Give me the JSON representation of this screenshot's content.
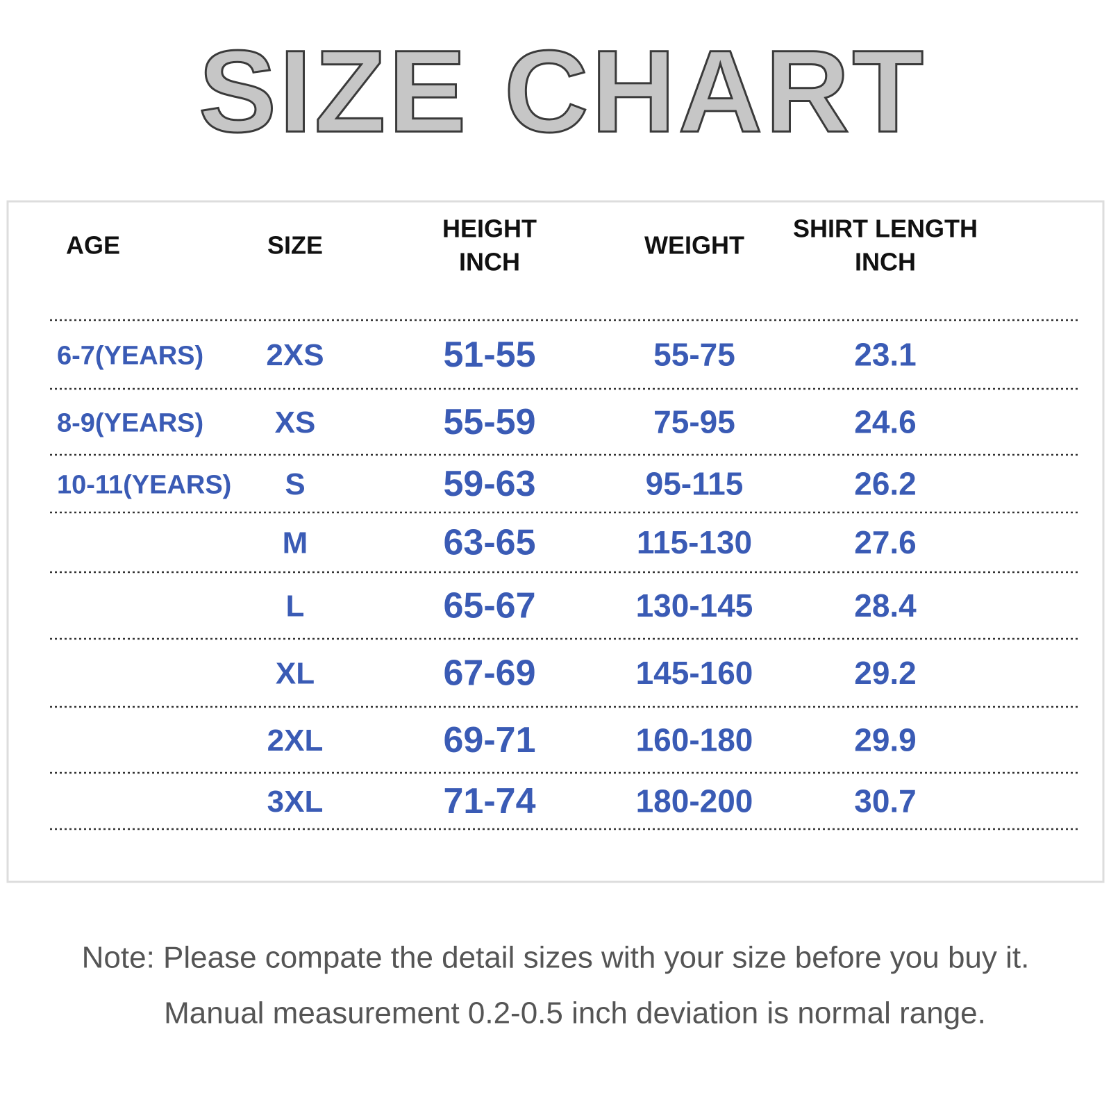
{
  "title": "SIZE CHART",
  "table": {
    "header": [
      [
        "AGE"
      ],
      [
        "SIZE"
      ],
      [
        "HEIGHT",
        "INCH"
      ],
      [
        "WEIGHT"
      ],
      [
        "SHIRT LENGTH",
        "INCH"
      ]
    ],
    "rows": [
      [
        "6-7(YEARS)",
        "2XS",
        "51-55",
        "55-75",
        "23.1"
      ],
      [
        "8-9(YEARS)",
        "XS",
        "55-59",
        "75-95",
        "24.6"
      ],
      [
        "10-11(YEARS)",
        "S",
        "59-63",
        "95-115",
        "26.2"
      ],
      [
        null,
        "M",
        "63-65",
        "115-130",
        "27.6"
      ],
      [
        null,
        "L",
        "65-67",
        "130-145",
        "28.4"
      ],
      [
        null,
        "XL",
        "67-69",
        "145-160",
        "29.2"
      ],
      [
        null,
        "2XL",
        "69-71",
        "160-180",
        "29.9"
      ],
      [
        null,
        "3XL",
        "71-74",
        "180-200",
        "30.7"
      ]
    ]
  },
  "notes": [
    "Note: Please compate the detail sizes with your size before you buy it.",
    "Manual measurement 0.2-0.5 inch deviation is normal range."
  ]
}
